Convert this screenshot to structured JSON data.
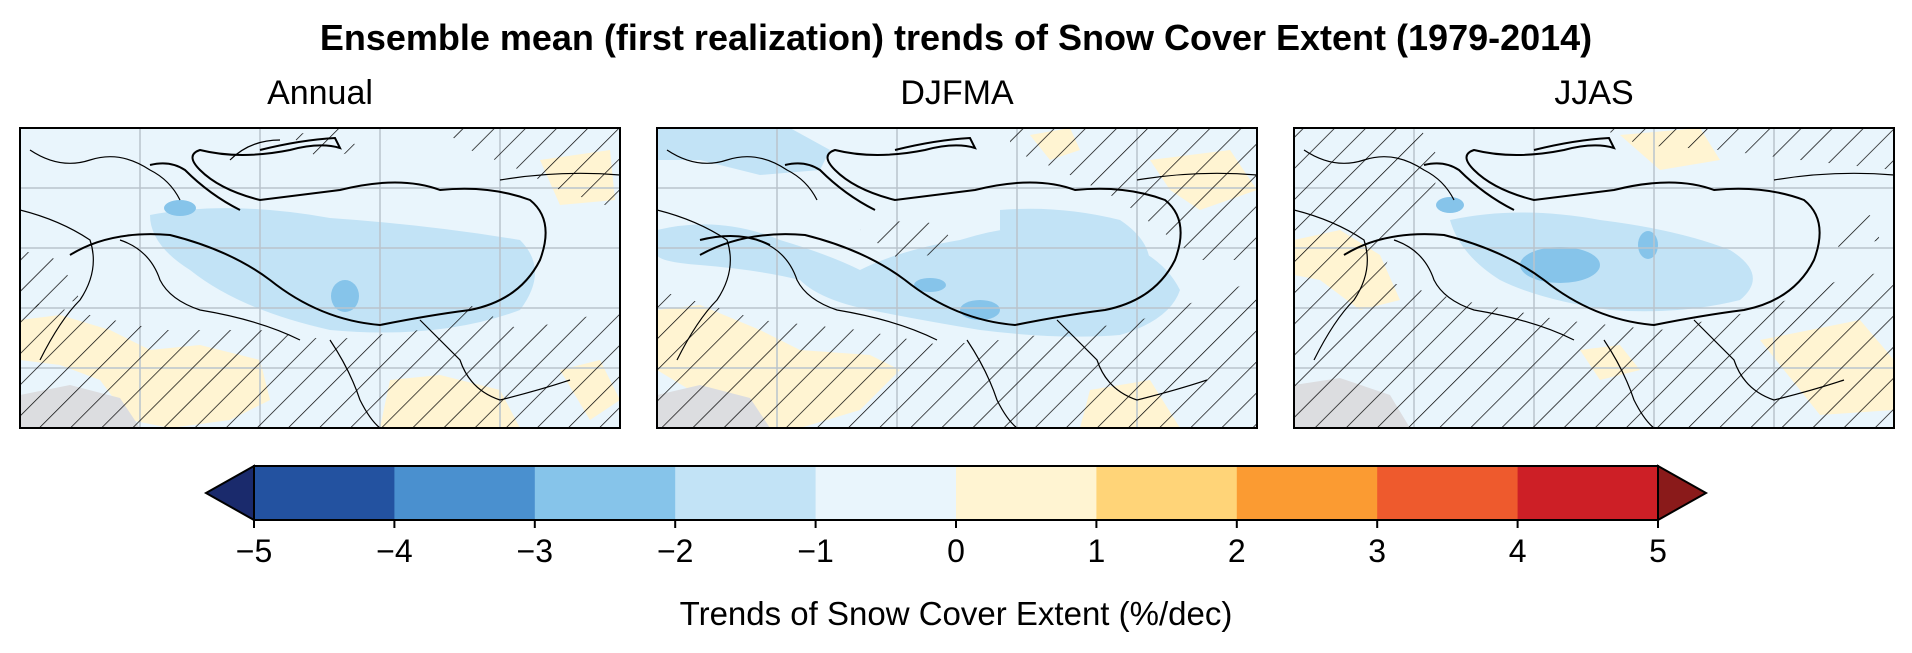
{
  "figure": {
    "title": "Ensemble mean (first realization) trends of Snow Cover Extent (1979-2014)"
  },
  "panels": [
    {
      "title": "Annual"
    },
    {
      "title": "DJFMA"
    },
    {
      "title": "JJAS"
    }
  ],
  "colorbar": {
    "label": "Trends of Snow Cover Extent (%/dec)",
    "ticks": [
      "−5",
      "−4",
      "−3",
      "−2",
      "−1",
      "0",
      "1",
      "2",
      "3",
      "4",
      "5"
    ],
    "colors": [
      "#1a2a6c",
      "#2352a0",
      "#4a90cf",
      "#86c4ea",
      "#c2e3f6",
      "#e9f5fc",
      "#fff4d2",
      "#ffd478",
      "#fb9b32",
      "#ee5a2d",
      "#cd1f26",
      "#8a1a1a"
    ],
    "extend": "both"
  },
  "map_colors": {
    "background": "#e9f5fc",
    "land_gray": "#dcdde0",
    "grid": "#b9c3cc",
    "boundary": "#000000"
  }
}
